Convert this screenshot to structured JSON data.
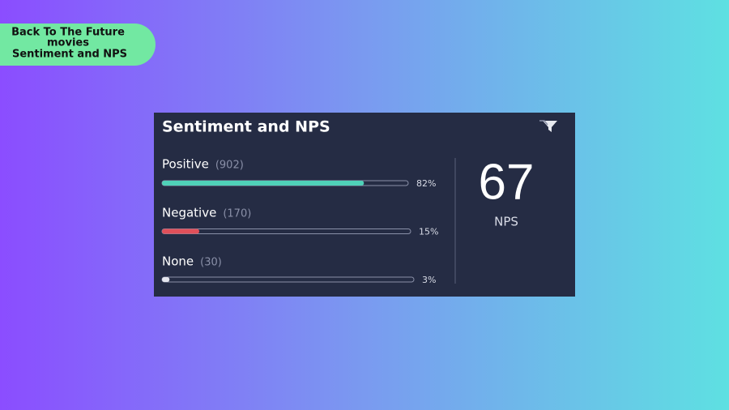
{
  "badge": {
    "lines": [
      "Back To The Future",
      "movies",
      "Sentiment and NPS"
    ]
  },
  "card": {
    "title": "Sentiment and NPS",
    "rows": [
      {
        "label": "Positive",
        "count": "(902)",
        "percent": 82,
        "percent_label": "82%",
        "color": "#4fd1b8"
      },
      {
        "label": "Negative",
        "count": "(170)",
        "percent": 15,
        "percent_label": "15%",
        "color": "#e0505a"
      },
      {
        "label": "None",
        "count": "(30)",
        "percent": 3,
        "percent_label": "3%",
        "color": "#e4e6ee"
      }
    ],
    "nps": {
      "value": 67,
      "label": "NPS"
    }
  }
}
